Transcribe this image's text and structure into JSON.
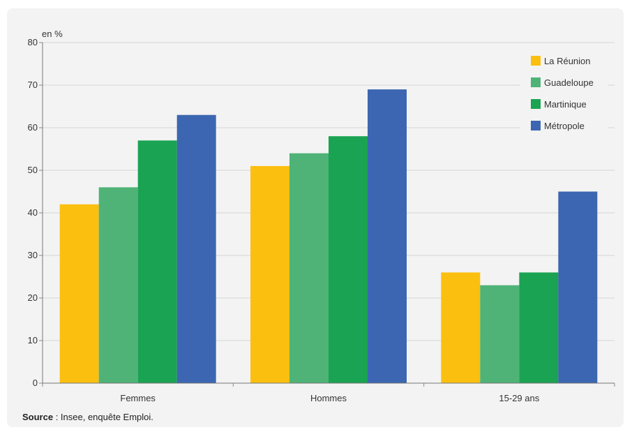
{
  "chart_data": {
    "type": "bar",
    "ylabel": "en %",
    "ylim": [
      0,
      80
    ],
    "yticks": [
      0,
      10,
      20,
      30,
      40,
      50,
      60,
      70,
      80
    ],
    "grid": true,
    "legend_position": "top-right",
    "categories": [
      "Femmes",
      "Hommes",
      "15-29 ans"
    ],
    "series": [
      {
        "name": "La Réunion",
        "color": "#fbbf0f",
        "values": [
          42,
          51,
          26
        ]
      },
      {
        "name": "Guadeloupe",
        "color": "#4fb377",
        "values": [
          46,
          54,
          23
        ]
      },
      {
        "name": "Martinique",
        "color": "#1aa352",
        "values": [
          57,
          58,
          26
        ]
      },
      {
        "name": "Métropole",
        "color": "#3c66b1",
        "values": [
          63,
          69,
          45
        ]
      }
    ]
  },
  "source": {
    "label": "Source",
    "text": " : Insee, enquête Emploi."
  }
}
